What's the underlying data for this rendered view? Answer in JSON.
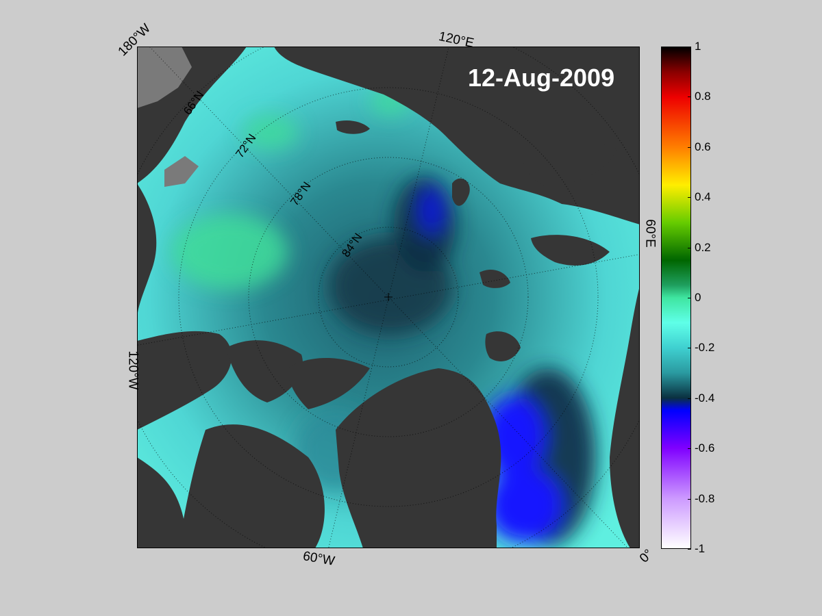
{
  "map": {
    "date_label": "12-Aug-2009",
    "longitude_labels": [
      "180°W",
      "120°E",
      "60°E",
      "0°",
      "60°W",
      "120°W"
    ],
    "latitude_labels": [
      "66°N",
      "72°N",
      "78°N",
      "84°N"
    ]
  },
  "colorbar": {
    "ticks": [
      "1",
      "0.8",
      "0.6",
      "0.4",
      "0.2",
      "0",
      "-0.2",
      "-0.4",
      "-0.6",
      "-0.8",
      "-1"
    ],
    "range": [
      -1,
      1
    ],
    "stops": [
      {
        "v": 1.0,
        "c": "#000000"
      },
      {
        "v": 0.9,
        "c": "#8b0000"
      },
      {
        "v": 0.8,
        "c": "#ee0000"
      },
      {
        "v": 0.6,
        "c": "#ff7f00"
      },
      {
        "v": 0.45,
        "c": "#ffee00"
      },
      {
        "v": 0.3,
        "c": "#66cc00"
      },
      {
        "v": 0.15,
        "c": "#006600"
      },
      {
        "v": 0.05,
        "c": "#1f9f5f"
      },
      {
        "v": 0.0,
        "c": "#3fe5a0"
      },
      {
        "v": -0.1,
        "c": "#5fffe8"
      },
      {
        "v": -0.2,
        "c": "#3fd0d0"
      },
      {
        "v": -0.3,
        "c": "#2a9aa0"
      },
      {
        "v": -0.4,
        "c": "#0a3040"
      },
      {
        "v": -0.45,
        "c": "#0000ff"
      },
      {
        "v": -0.6,
        "c": "#7f00ff"
      },
      {
        "v": -0.8,
        "c": "#cc99ff"
      },
      {
        "v": -1.0,
        "c": "#ffffff"
      }
    ]
  },
  "colors": {
    "land": "#363636",
    "masked_land": "#7a7a7a",
    "figure_background": "#cccccc"
  }
}
